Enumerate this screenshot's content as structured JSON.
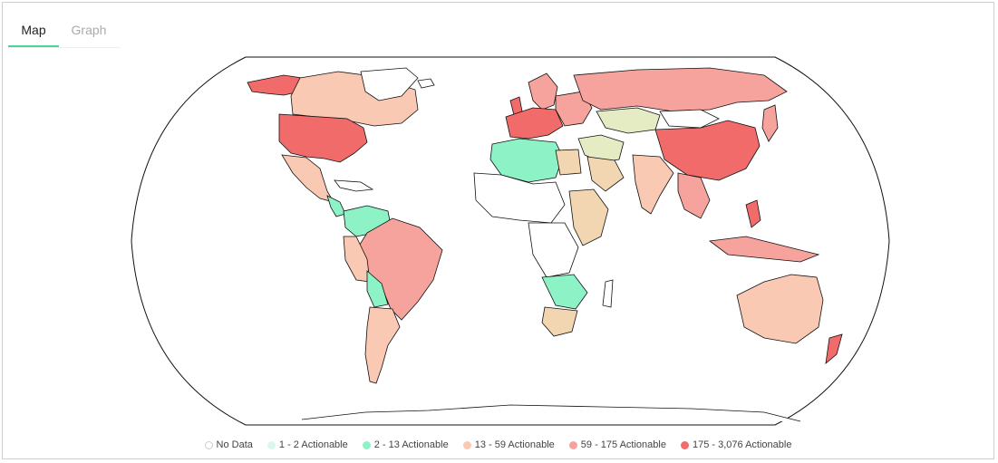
{
  "tabs": [
    {
      "label": "Map",
      "active": true
    },
    {
      "label": "Graph",
      "active": false
    }
  ],
  "colors": {
    "no_data": "#ffffff",
    "bin1": "#d9f7ec",
    "bin2": "#8df2c6",
    "bin3": "#f9c9b3",
    "bin4": "#f6a39d",
    "bin5": "#f26b6b",
    "tan": "#f2d6b1",
    "olive": "#e5ebc3",
    "outline": "#111111",
    "accent": "#4fd39a"
  },
  "legend": [
    {
      "label": "No Data",
      "color": "#ffffff"
    },
    {
      "label": "1 - 2 Actionable",
      "color": "#d9f7ec"
    },
    {
      "label": "2 - 13 Actionable",
      "color": "#8df2c6"
    },
    {
      "label": "13 - 59 Actionable",
      "color": "#f9c9b3"
    },
    {
      "label": "59 - 175 Actionable",
      "color": "#f6a39d"
    },
    {
      "label": "175 - 3,076 Actionable",
      "color": "#f26b6b"
    }
  ]
}
